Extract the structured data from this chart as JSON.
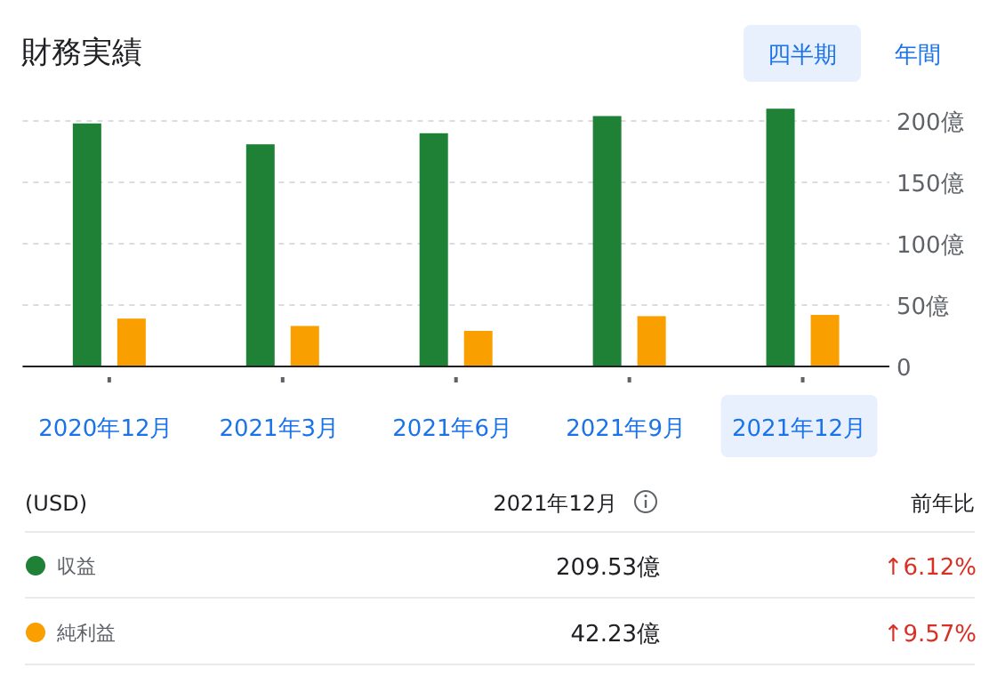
{
  "chart_data": {
    "type": "bar",
    "title": "財務実績",
    "categories": [
      "2020年12月",
      "2021年3月",
      "2021年6月",
      "2021年9月",
      "2021年12月"
    ],
    "series": [
      {
        "name": "収益",
        "color": "#1e8136",
        "values": [
          198,
          181,
          190,
          204,
          210
        ]
      },
      {
        "name": "純利益",
        "color": "#f9a000",
        "values": [
          39,
          33,
          29,
          41,
          42
        ]
      }
    ],
    "ylim": [
      0,
      210
    ],
    "yticks": [
      0,
      {
        "value": 50,
        "label": "50億"
      },
      {
        "value": 100,
        "label": "100億"
      },
      {
        "value": 150,
        "label": "150億"
      },
      {
        "value": 200,
        "label": "200億"
      }
    ],
    "grid": "y",
    "legend": "bottom",
    "annotations": [
      "四半期",
      "年間",
      "(USD)",
      "2021年12月",
      "前年比",
      "209.53億",
      "42.23億",
      "↑6.12%",
      "↑9.57%"
    ]
  }
}
